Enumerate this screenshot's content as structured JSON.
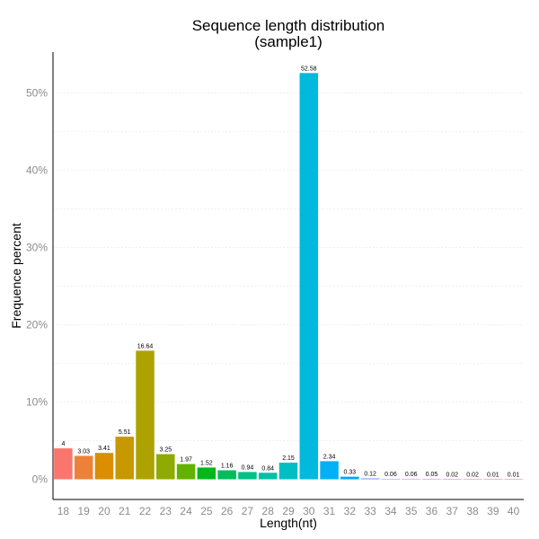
{
  "chart_data": {
    "type": "bar",
    "title": "Sequence length distribution",
    "subtitle": "(sample1)",
    "xlabel": "Length(nt)",
    "ylabel": "Frequence percent",
    "ylim": [
      0,
      55
    ],
    "y_ticks": [
      0,
      10,
      20,
      30,
      40,
      50
    ],
    "y_tick_labels": [
      "0%",
      "10%",
      "20%",
      "30%",
      "40%",
      "50%"
    ],
    "grid": true,
    "legend": "none",
    "categories": [
      "18",
      "19",
      "20",
      "21",
      "22",
      "23",
      "24",
      "25",
      "26",
      "27",
      "28",
      "29",
      "30",
      "31",
      "32",
      "33",
      "34",
      "35",
      "36",
      "37",
      "38",
      "39",
      "40"
    ],
    "values": [
      4,
      3.03,
      3.41,
      5.51,
      16.64,
      3.25,
      1.97,
      1.52,
      1.16,
      0.94,
      0.84,
      2.15,
      52.58,
      2.34,
      0.33,
      0.12,
      0.06,
      0.06,
      0.05,
      0.02,
      0.02,
      0.01,
      0.01
    ],
    "value_labels": [
      "4",
      "3.03",
      "3.41",
      "5.51",
      "16.64",
      "3.25",
      "1.97",
      "1.52",
      "1.16",
      "0.94",
      "0.84",
      "2.15",
      "52.58",
      "2.34",
      "0.33",
      "0.12",
      "0.06",
      "0.06",
      "0.05",
      "0.02",
      "0.02",
      "0.01",
      "0.01"
    ],
    "colors": [
      "#F8766D",
      "#EC8239",
      "#DB8E00",
      "#C79800",
      "#AEA200",
      "#8FAA00",
      "#64B200",
      "#00B81B",
      "#00BD5C",
      "#00C085",
      "#00C1A7",
      "#00BFC4",
      "#00BADE",
      "#00B2F3",
      "#00A6FF",
      "#7C96FF",
      "#B385FF",
      "#D874FD",
      "#EF67EB",
      "#FD61D3",
      "#FF63B6",
      "#FF6B94",
      "#FF6C91"
    ]
  }
}
